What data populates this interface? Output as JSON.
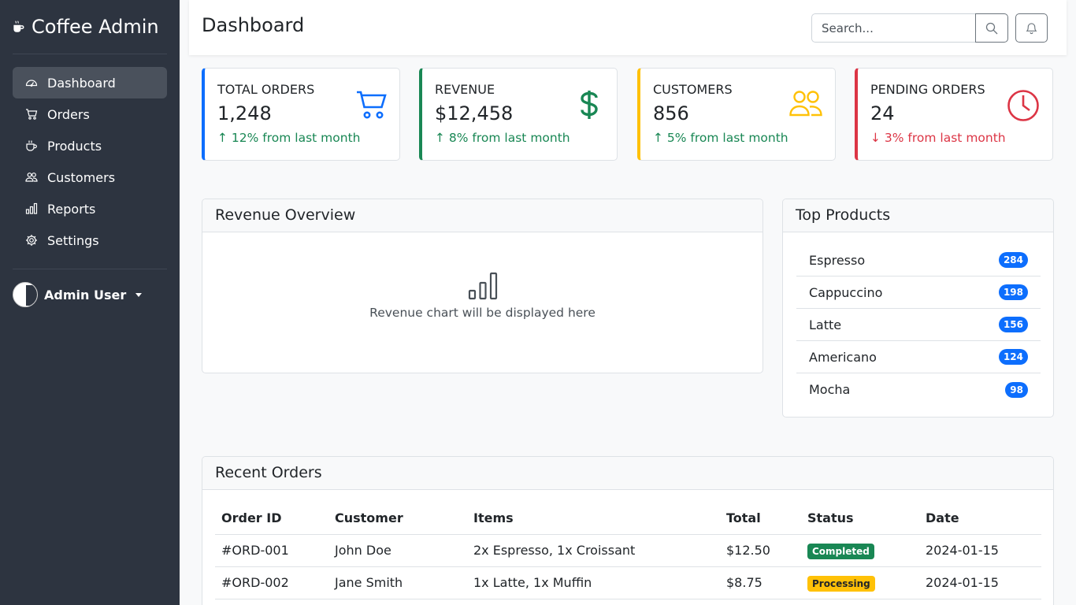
{
  "app": {
    "title": "Coffee Admin"
  },
  "sidebar": {
    "items": [
      {
        "label": "Dashboard",
        "icon": "speedometer-icon",
        "active": true
      },
      {
        "label": "Orders",
        "icon": "cart-icon"
      },
      {
        "label": "Products",
        "icon": "cup-icon"
      },
      {
        "label": "Customers",
        "icon": "people-icon"
      },
      {
        "label": "Reports",
        "icon": "bar-chart-icon"
      },
      {
        "label": "Settings",
        "icon": "gear-icon"
      }
    ],
    "user": {
      "name": "Admin User"
    }
  },
  "header": {
    "title": "Dashboard",
    "search_placeholder": "Search..."
  },
  "stats": [
    {
      "label": "TOTAL ORDERS",
      "value": "1,248",
      "change": "↑ 12% from last month",
      "trend": "up",
      "icon": "cart-icon",
      "color": "#0d6efd"
    },
    {
      "label": "REVENUE",
      "value": "$12,458",
      "change": "↑ 8% from last month",
      "trend": "up",
      "icon": "dollar-icon",
      "color": "#198754"
    },
    {
      "label": "CUSTOMERS",
      "value": "856",
      "change": "↑ 5% from last month",
      "trend": "up",
      "icon": "people-icon",
      "color": "#ffc107"
    },
    {
      "label": "PENDING ORDERS",
      "value": "24",
      "change": "↓ 3% from last month",
      "trend": "down",
      "icon": "clock-icon",
      "color": "#dc3545"
    }
  ],
  "revenue": {
    "title": "Revenue Overview",
    "placeholder": "Revenue chart will be displayed here"
  },
  "top_products": {
    "title": "Top Products",
    "items": [
      {
        "name": "Espresso",
        "count": "284"
      },
      {
        "name": "Cappuccino",
        "count": "198"
      },
      {
        "name": "Latte",
        "count": "156"
      },
      {
        "name": "Americano",
        "count": "124"
      },
      {
        "name": "Mocha",
        "count": "98"
      }
    ]
  },
  "recent_orders": {
    "title": "Recent Orders",
    "columns": [
      "Order ID",
      "Customer",
      "Items",
      "Total",
      "Status",
      "Date"
    ],
    "rows": [
      {
        "id": "#ORD-001",
        "customer": "John Doe",
        "items": "2x Espresso, 1x Croissant",
        "total": "$12.50",
        "status": "Completed",
        "status_color": "#198754",
        "status_text_color": "#ffffff",
        "date": "2024-01-15"
      },
      {
        "id": "#ORD-002",
        "customer": "Jane Smith",
        "items": "1x Latte, 1x Muffin",
        "total": "$8.75",
        "status": "Processing",
        "status_color": "#ffc107",
        "status_text_color": "#212529",
        "date": "2024-01-15"
      }
    ]
  }
}
